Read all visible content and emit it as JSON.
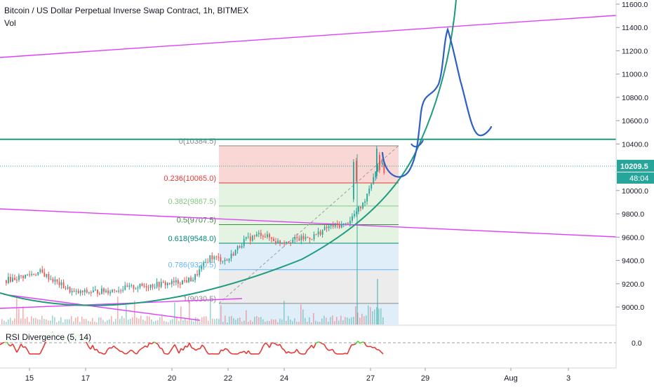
{
  "header": {
    "title": "Bitcoin / US Dollar Perpetual Inverse Swap Contract, 1h, BITMEX",
    "indicator": "Vol"
  },
  "rsi": {
    "label": "RSI Divergence (5, 14)",
    "zero_label": "0.0"
  },
  "colors": {
    "up": "#26a69a",
    "down": "#ef5350",
    "green_line": "#1e9b7f",
    "magenta": "#e040fb",
    "hand_drawn": "#2f5fc4",
    "fib_red": "#f6c9c6",
    "fib_green": "#dcefd8",
    "fib_blue": "#d6e8f8",
    "fib_gray": "#e6e6e6",
    "price_marker": "#26a69a"
  },
  "price_marker": {
    "price": "10209.5",
    "countdown": "48:04"
  },
  "fib_levels": [
    {
      "label": "0(10384.5)",
      "price": 10384.5,
      "color": "#8a8a8a"
    },
    {
      "label": "0.236(10065.0)",
      "price": 10065.0,
      "color": "#e53935"
    },
    {
      "label": "0.382(9867.5)",
      "price": 9867.5,
      "color": "#81c784"
    },
    {
      "label": "0.5(9707.5)",
      "price": 9707.5,
      "color": "#388e3c"
    },
    {
      "label": "0.618(9548.0)",
      "price": 9548.0,
      "color": "#00897b"
    },
    {
      "label": "0.786(9320.5)",
      "price": 9320.5,
      "color": "#64b5f6"
    },
    {
      "label": "1(9030.5)",
      "price": 9030.5,
      "color": "#8a8a8a"
    }
  ],
  "chart_data": {
    "type": "candlestick",
    "y_axis_ticks": [
      "11600.0",
      "11400.0",
      "11200.0",
      "11000.0",
      "10800.0",
      "10600.0",
      "10400.0",
      "10000.0",
      "9800.0",
      "9600.0",
      "9400.0",
      "9200.0",
      "9000.0"
    ],
    "x_axis_ticks": [
      "15",
      "17",
      "20",
      "22",
      "24",
      "27",
      "29",
      "Aug",
      "3"
    ],
    "ylim": [
      8840,
      11640
    ],
    "horizontal_levels": [
      10440
    ],
    "price_points": [
      {
        "x": 0,
        "y": 9230
      },
      {
        "x": 4,
        "y": 9300
      },
      {
        "x": 8,
        "y": 9120
      },
      {
        "x": 12,
        "y": 9140
      },
      {
        "x": 16,
        "y": 9180
      },
      {
        "x": 20,
        "y": 9210
      },
      {
        "x": 22,
        "y": 9240
      },
      {
        "x": 24,
        "y": 9430
      },
      {
        "x": 26,
        "y": 9400
      },
      {
        "x": 28,
        "y": 9570
      },
      {
        "x": 30,
        "y": 9630
      },
      {
        "x": 32,
        "y": 9560
      },
      {
        "x": 34,
        "y": 9580
      },
      {
        "x": 36,
        "y": 9600
      },
      {
        "x": 38,
        "y": 9690
      },
      {
        "x": 40,
        "y": 9710
      },
      {
        "x": 42,
        "y": 9880
      },
      {
        "x": 44,
        "y": 10270
      },
      {
        "x": 45,
        "y": 10060
      },
      {
        "x": 46,
        "y": 10209.5
      }
    ]
  }
}
